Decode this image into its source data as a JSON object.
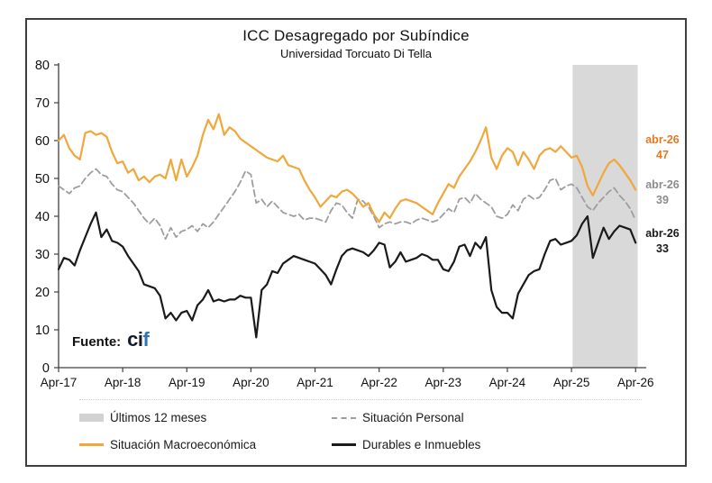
{
  "title": "ICC Desagregado por Subíndice",
  "subtitle": "Universidad Torcuato Di Tella",
  "source": {
    "label": "Fuente:",
    "brand_ci": "ci",
    "brand_f": "f"
  },
  "annotations": [
    {
      "label": "abr-26",
      "value": "47",
      "color": "#e87722",
      "series": "Situación Macroeconómica"
    },
    {
      "label": "abr-26",
      "value": "39",
      "color": "#8c8c8c",
      "series": "Situación Personal"
    },
    {
      "label": "abr-26",
      "value": "33",
      "color": "#1a1a1a",
      "series": "Durables e Inmuebles"
    }
  ],
  "legend": [
    {
      "label": "Últimos 12 meses",
      "swatch": "band",
      "color": "#d2d2d2"
    },
    {
      "label": "Situación Personal",
      "swatch": "dashed",
      "color": "#9e9e9e"
    },
    {
      "label": "Situación Macroeconómica",
      "swatch": "solid",
      "color": "#f0a73c"
    },
    {
      "label": "Durables e Inmuebles",
      "swatch": "solid",
      "color": "#1a1a1a"
    }
  ],
  "chart_data": {
    "type": "line",
    "title": "ICC Desagregado por Subíndice",
    "subtitle": "Universidad Torcuato Di Tella",
    "x_unit": "monthly, Apr-2017 to Apr-2026",
    "x_tick_labels": [
      "Apr-17",
      "Apr-18",
      "Apr-19",
      "Apr-20",
      "Apr-21",
      "Apr-22",
      "Apr-23",
      "Apr-24",
      "Apr-25",
      "Apr-26"
    ],
    "x_tick_positions": [
      0,
      12,
      24,
      36,
      48,
      60,
      72,
      84,
      96,
      108
    ],
    "y_ticks": [
      0,
      10,
      20,
      30,
      40,
      50,
      60,
      70,
      80
    ],
    "ylim": [
      0,
      80
    ],
    "grid": false,
    "legend_position": "bottom",
    "shaded_region": {
      "label": "Últimos 12 meses",
      "from_month": 96.2,
      "to_month": 108.4,
      "color": "#d9d9d9"
    },
    "series": [
      {
        "name": "Situación Personal",
        "color": "#9e9e9e",
        "dash": true,
        "values": [
          48,
          47,
          46,
          47.5,
          48,
          50,
          51.5,
          52.5,
          51,
          50.5,
          48.5,
          47,
          46.5,
          45,
          43.5,
          41.5,
          39.5,
          38,
          39.5,
          37.5,
          34,
          37,
          34.5,
          36,
          36.5,
          37.5,
          36,
          38,
          37,
          38.5,
          40.5,
          42.5,
          44.5,
          46.5,
          49,
          52,
          51,
          43.5,
          44.5,
          42.5,
          44,
          42.5,
          41,
          40.5,
          40,
          40.5,
          39,
          39.5,
          39.5,
          39,
          38.5,
          41.5,
          43.5,
          43,
          41,
          39.5,
          44.5,
          44,
          42.5,
          40,
          37,
          38,
          38.5,
          38,
          38.5,
          38.5,
          38,
          39,
          39.5,
          39,
          38.5,
          39,
          40.5,
          42,
          41,
          44.5,
          45,
          43.5,
          46,
          44.5,
          43.5,
          42.5,
          40,
          39.5,
          40.5,
          43,
          41.5,
          44.5,
          45.5,
          44.5,
          45,
          47,
          49.5,
          50,
          47,
          48,
          48.5,
          47.5,
          45,
          42.5,
          41.5,
          43.5,
          45,
          46.5,
          47.5,
          45.5,
          44,
          42,
          39
        ]
      },
      {
        "name": "Situación Macroeconómica",
        "color": "#f0a73c",
        "dash": false,
        "values": [
          60,
          61.5,
          58,
          56,
          55,
          62,
          62.5,
          61.5,
          62,
          61,
          57,
          54,
          54.5,
          51.5,
          52.5,
          49.5,
          50.5,
          49,
          50.5,
          51,
          50,
          55,
          49.5,
          55,
          50.5,
          53,
          56,
          61.5,
          65.5,
          63,
          67,
          61.5,
          63.5,
          62.5,
          60.5,
          59.5,
          58.5,
          57.5,
          56.5,
          55.5,
          55,
          54.5,
          56,
          53.5,
          53,
          52.5,
          49.5,
          47,
          45,
          42.5,
          44,
          45.5,
          45,
          46.5,
          47,
          46,
          44.5,
          42.5,
          43.5,
          40.5,
          38.5,
          41,
          39.5,
          42,
          44,
          44.5,
          44,
          43.5,
          42.5,
          41.5,
          40.5,
          43.5,
          46,
          48.5,
          47.5,
          50.5,
          52.5,
          54.5,
          57,
          60,
          63.5,
          55.5,
          52.5,
          56,
          58,
          57,
          53.5,
          57,
          55,
          52.5,
          56,
          57.5,
          58,
          57,
          58.5,
          57,
          55.5,
          56,
          53,
          48,
          45.5,
          48.5,
          51.5,
          54,
          55,
          53.5,
          51.5,
          49.5,
          47
        ]
      },
      {
        "name": "Durables e Inmuebles",
        "color": "#1a1a1a",
        "dash": false,
        "values": [
          26,
          29,
          28.5,
          27,
          31,
          34.5,
          38,
          41,
          34.5,
          36.5,
          33.5,
          33,
          32,
          29.5,
          27.5,
          25.5,
          22,
          21.5,
          21,
          19,
          13,
          14.5,
          12.5,
          14.5,
          15,
          12.5,
          16.5,
          18,
          20.5,
          17.5,
          18,
          17.5,
          18,
          18,
          19,
          18.5,
          18.5,
          8,
          20.5,
          22,
          25.5,
          25,
          27.5,
          28.5,
          29.5,
          29,
          28.5,
          28,
          27.5,
          26,
          24.5,
          22,
          26,
          29.5,
          31,
          31.5,
          31,
          30.5,
          29.5,
          31,
          33,
          32.5,
          26.5,
          28,
          30.5,
          28,
          28.5,
          29,
          30,
          29.5,
          28.5,
          28.5,
          26,
          25.5,
          28,
          32,
          32.5,
          29.5,
          33,
          31.5,
          34.5,
          20.5,
          16,
          14.5,
          14.5,
          13,
          19.5,
          22,
          24.5,
          25.5,
          26,
          30,
          33.5,
          34,
          32.5,
          33,
          33.5,
          35,
          38,
          40,
          29,
          33,
          37,
          34,
          36,
          37.5,
          37,
          36.5,
          33
        ]
      }
    ],
    "end_labels": [
      {
        "series": "Situación Macroeconómica",
        "label": "abr-26",
        "value": 47
      },
      {
        "series": "Situación Personal",
        "label": "abr-26",
        "value": 39
      },
      {
        "series": "Durables e Inmuebles",
        "label": "abr-26",
        "value": 33
      }
    ]
  }
}
